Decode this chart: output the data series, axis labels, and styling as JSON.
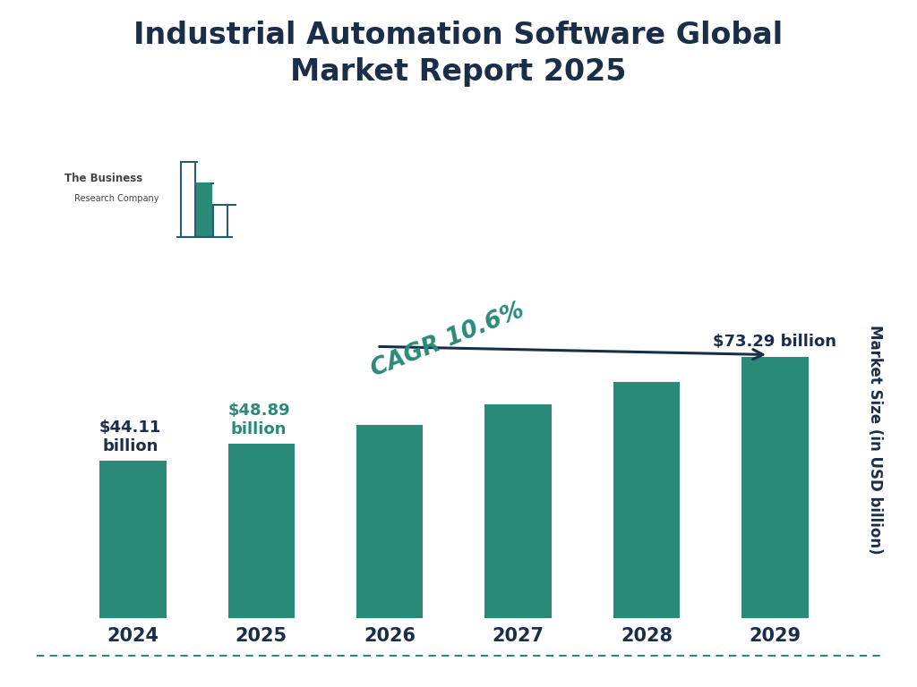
{
  "title": "Industrial Automation Software Global\nMarket Report 2025",
  "years": [
    "2024",
    "2025",
    "2026",
    "2027",
    "2028",
    "2029"
  ],
  "values": [
    44.11,
    48.89,
    54.08,
    59.8,
    66.13,
    73.29
  ],
  "bar_color": "#2a8a78",
  "ylabel": "Market Size (in USD billion)",
  "title_color": "#1a2e4a",
  "cagr_color": "#2a8a78",
  "background_color": "#ffffff",
  "dashed_line_color": "#2a8a78",
  "ylim_max": 100,
  "label_2024": "$44.11\nbillion",
  "label_2025": "$48.89\nbillion",
  "label_2029": "$73.29 billion",
  "label_2024_color": "#1a2e4a",
  "label_2025_color": "#2a8a78",
  "label_2029_color": "#1a2e4a",
  "tick_color": "#1a2e4a",
  "tick_fontsize": 15,
  "label_fontsize": 13,
  "title_fontsize": 24,
  "ylabel_fontsize": 12,
  "cagr_fontsize": 19,
  "arrow_color": "#1a2e4a"
}
